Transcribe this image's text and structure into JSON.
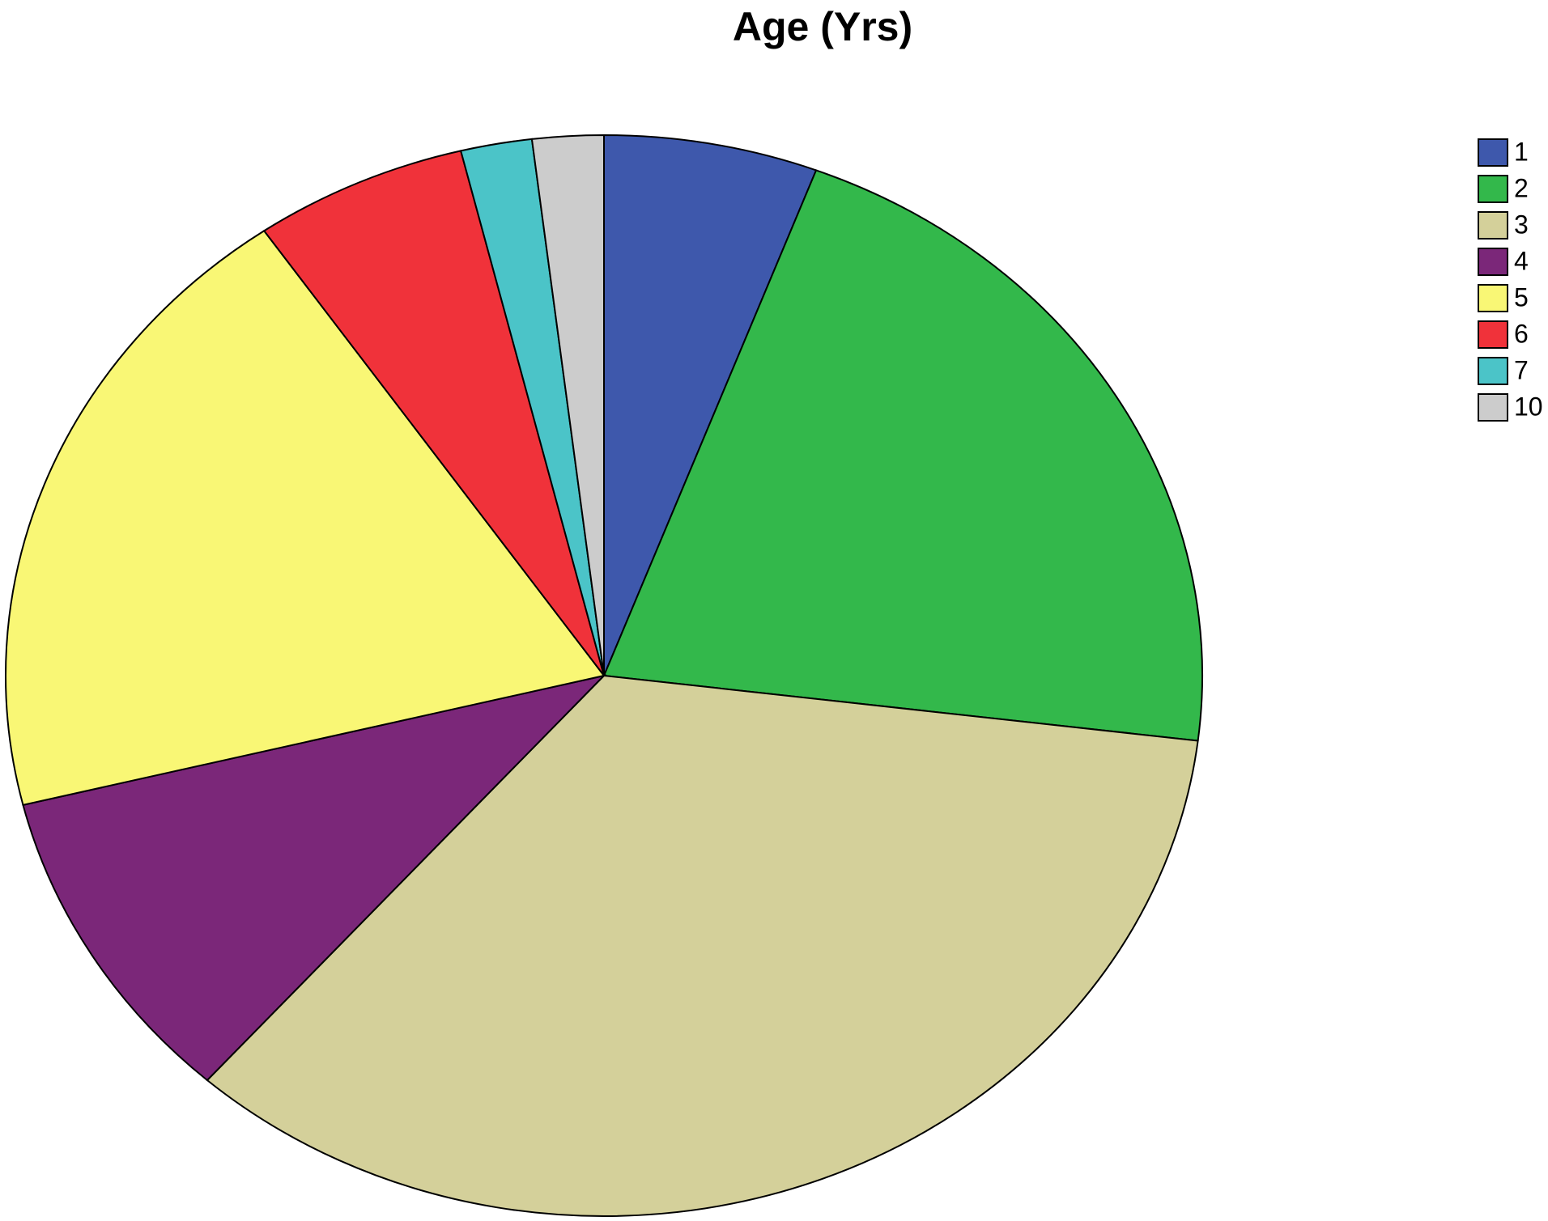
{
  "chart_data": {
    "type": "pie",
    "title": "Age (Yrs)",
    "categories": [
      "1",
      "2",
      "3",
      "4",
      "5",
      "6",
      "7",
      "10"
    ],
    "values": [
      3,
      11,
      18,
      5,
      10,
      3,
      1,
      1
    ],
    "colors": [
      "#3e58ac",
      "#33b84b",
      "#d4d09a",
      "#7b2779",
      "#f9f775",
      "#f0323a",
      "#4bc4c8",
      "#cccccc"
    ],
    "legend": "right"
  }
}
